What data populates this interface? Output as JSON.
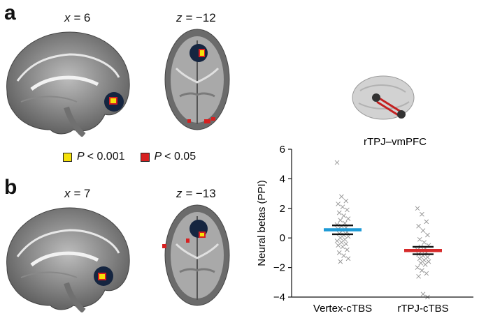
{
  "panels": {
    "a": {
      "letter": "a",
      "sagittal": {
        "axis": "x",
        "value": "6"
      },
      "axial": {
        "axis": "z",
        "value": "−12"
      }
    },
    "b": {
      "letter": "b",
      "sagittal": {
        "axis": "x",
        "value": "7"
      },
      "axial": {
        "axis": "z",
        "value": "−13"
      }
    }
  },
  "legend": [
    {
      "color": "#f5e10a",
      "p": "P",
      "text": "< 0.001"
    },
    {
      "color": "#d72020",
      "p": "P",
      "text": "< 0.05"
    }
  ],
  "chart_data": {
    "type": "scatter",
    "title": "rTPJ–vmPFC",
    "ylabel": "Neural betas (PPI)",
    "ylim": [
      -4,
      6
    ],
    "yticks": [
      "6",
      "4",
      "2",
      "0",
      "−2",
      "−4"
    ],
    "ytick_values": [
      6,
      4,
      2,
      0,
      -2,
      -4
    ],
    "categories": [
      "Vertex-cTBS",
      "rTPJ-cTBS"
    ],
    "series": [
      {
        "mean": 0.55,
        "sem_low": 0.25,
        "sem_high": 0.85,
        "mean_color": "#1e9ad6",
        "points": [
          5.1,
          2.8,
          2.5,
          2.3,
          2.1,
          1.9,
          1.7,
          1.5,
          1.3,
          1.2,
          1.0,
          0.9,
          0.8,
          0.7,
          0.6,
          0.5,
          0.4,
          0.3,
          0.2,
          0.1,
          0.0,
          -0.1,
          -0.2,
          -0.3,
          -0.4,
          -0.5,
          -0.6,
          -0.8,
          -1.0,
          -1.2,
          -1.4,
          -1.6
        ]
      },
      {
        "mean": -0.85,
        "sem_low": -1.1,
        "sem_high": -0.6,
        "mean_color": "#d62a2a",
        "points": [
          2.0,
          1.6,
          1.1,
          0.8,
          0.5,
          0.2,
          -0.1,
          -0.3,
          -0.5,
          -0.6,
          -0.7,
          -0.8,
          -0.9,
          -1.0,
          -1.1,
          -1.2,
          -1.3,
          -1.4,
          -1.5,
          -1.6,
          -1.7,
          -1.8,
          -2.0,
          -2.2,
          -2.4,
          -2.6,
          -3.8,
          -4.0
        ]
      }
    ],
    "inset_color": "#c42020"
  }
}
